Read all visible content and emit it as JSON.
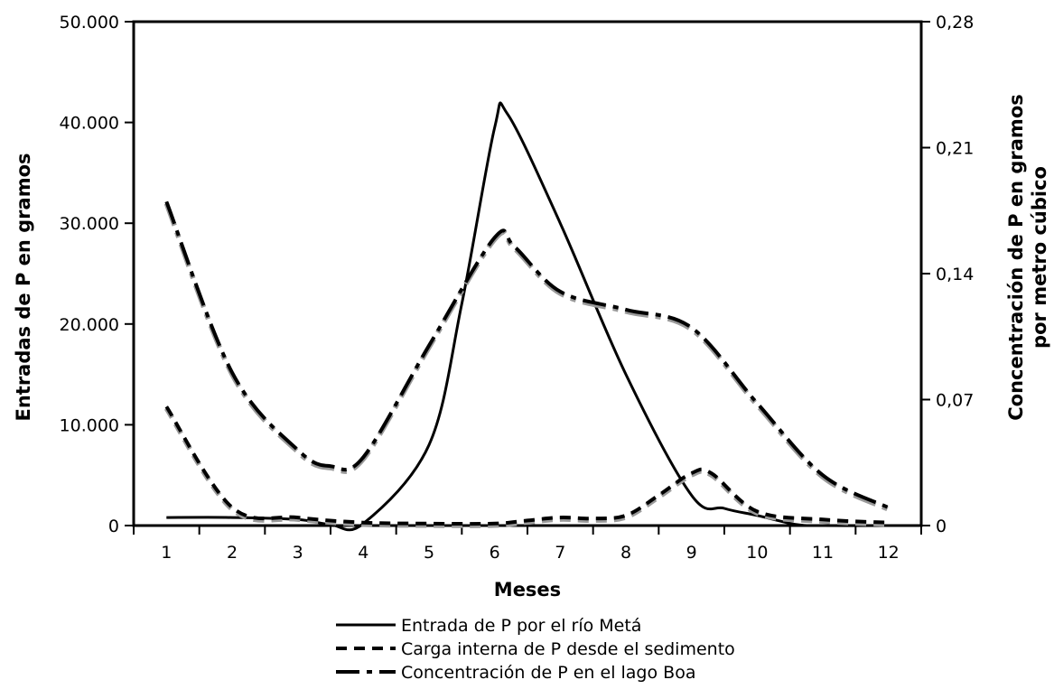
{
  "chart_data": {
    "type": "line",
    "x": [
      1,
      2,
      3,
      4,
      5,
      6,
      7,
      8,
      9,
      10,
      11,
      12
    ],
    "xlabel": "Meses",
    "ylabel_left": "Entradas de P en gramos",
    "ylabel_right": [
      "Concentración de P en gramos",
      "por metro cúbico"
    ],
    "ylim_left": [
      0,
      50000
    ],
    "ylim_right": [
      0,
      0.28
    ],
    "yticks_left": [
      {
        "value": 0,
        "label": "0"
      },
      {
        "value": 10000,
        "label": "10.000"
      },
      {
        "value": 20000,
        "label": "20.000"
      },
      {
        "value": 30000,
        "label": "30.000"
      },
      {
        "value": 40000,
        "label": "40.000"
      },
      {
        "value": 50000,
        "label": "50.000"
      }
    ],
    "yticks_right": [
      {
        "value": 0,
        "label": "0"
      },
      {
        "value": 0.07,
        "label": "0,07"
      },
      {
        "value": 0.14,
        "label": "0,14"
      },
      {
        "value": 0.21,
        "label": "0,21"
      },
      {
        "value": 0.28,
        "label": "0,28"
      }
    ],
    "xtick_labels": [
      "1",
      "2",
      "3",
      "4",
      "5",
      "6",
      "7",
      "8",
      "9",
      "10",
      "11",
      "12"
    ],
    "grid": false,
    "legend_position": "bottom-center",
    "series": [
      {
        "name": "Entrada de P por el río Metá",
        "axis": "left",
        "style": "solid",
        "x": [
          1,
          2,
          3,
          3.5,
          4,
          5,
          5.5,
          6,
          6.2,
          7,
          8,
          9,
          9.5,
          10,
          10.6,
          11,
          12
        ],
        "values": [
          800,
          800,
          600,
          100,
          200,
          8000,
          22000,
          39500,
          40800,
          30000,
          15000,
          3000,
          1700,
          1000,
          100,
          0,
          0
        ]
      },
      {
        "name": "Carga interna de P desde el sedimento",
        "axis": "left",
        "style": "dashed",
        "x": [
          1,
          2,
          3,
          4,
          5,
          6,
          6.5,
          7,
          7.5,
          8,
          8.5,
          9,
          9.3,
          10,
          11,
          12
        ],
        "values": [
          11800,
          1800,
          800,
          300,
          200,
          200,
          500,
          800,
          700,
          1000,
          3000,
          5200,
          5200,
          1400,
          600,
          300
        ]
      },
      {
        "name": "Concentración de P en el lago Boa",
        "axis": "right",
        "style": "dash-dot",
        "x": [
          1,
          2,
          3,
          3.5,
          4,
          5,
          6,
          6.3,
          7,
          8,
          9,
          10,
          11,
          12
        ],
        "values": [
          0.18,
          0.085,
          0.042,
          0.033,
          0.038,
          0.1,
          0.16,
          0.155,
          0.13,
          0.12,
          0.11,
          0.068,
          0.028,
          0.01
        ]
      }
    ]
  }
}
